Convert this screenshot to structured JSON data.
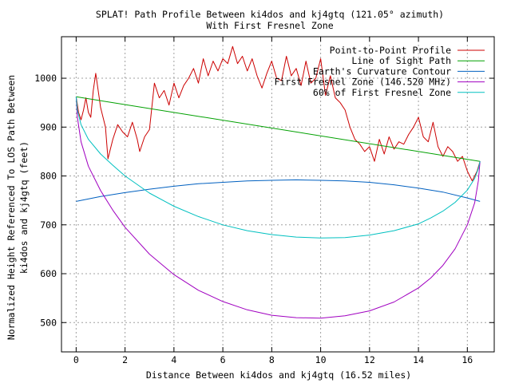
{
  "chart_data": {
    "type": "line",
    "title": "SPLAT! Path Profile Between ki4dos and kj4gtq (121.05° azimuth)",
    "subtitle": "With First Fresnel Zone",
    "xlabel": "Distance Between ki4dos and kj4gtq (16.52 miles)",
    "ylabel_line1": "Normalized Height Referenced To LOS Path Between",
    "ylabel_line2": "ki4dos and kj4gtq (feet)",
    "xlim": [
      -0.6,
      17.1
    ],
    "ylim": [
      440,
      1085
    ],
    "xticks": [
      0,
      2,
      4,
      6,
      8,
      10,
      12,
      14,
      16
    ],
    "yticks": [
      500,
      600,
      700,
      800,
      900,
      1000
    ],
    "grid": true,
    "legend_position": "top-right",
    "series": [
      {
        "name": "Point-to-Point Profile",
        "color": "#cc0000",
        "x": [
          0,
          0.1,
          0.2,
          0.3,
          0.4,
          0.5,
          0.6,
          0.7,
          0.8,
          1.0,
          1.2,
          1.3,
          1.5,
          1.7,
          1.9,
          2.1,
          2.3,
          2.5,
          2.6,
          2.8,
          3.0,
          3.2,
          3.4,
          3.6,
          3.8,
          4.0,
          4.2,
          4.4,
          4.6,
          4.8,
          5.0,
          5.2,
          5.4,
          5.6,
          5.8,
          6.0,
          6.2,
          6.4,
          6.6,
          6.8,
          7.0,
          7.2,
          7.4,
          7.6,
          7.8,
          8.0,
          8.2,
          8.4,
          8.6,
          8.8,
          9.0,
          9.2,
          9.4,
          9.6,
          9.8,
          10.0,
          10.2,
          10.4,
          10.6,
          10.8,
          11.0,
          11.2,
          11.4,
          11.6,
          11.8,
          12.0,
          12.2,
          12.4,
          12.6,
          12.8,
          13.0,
          13.2,
          13.4,
          13.6,
          13.8,
          14.0,
          14.2,
          14.4,
          14.6,
          14.8,
          15.0,
          15.2,
          15.4,
          15.6,
          15.8,
          16.0,
          16.2,
          16.4,
          16.52
        ],
        "values": [
          962,
          930,
          915,
          935,
          960,
          930,
          920,
          975,
          1010,
          940,
          900,
          835,
          875,
          905,
          890,
          880,
          910,
          875,
          850,
          880,
          895,
          990,
          960,
          975,
          945,
          990,
          960,
          985,
          1000,
          1020,
          990,
          1040,
          1005,
          1035,
          1015,
          1040,
          1030,
          1065,
          1030,
          1045,
          1015,
          1040,
          1005,
          980,
          1010,
          1035,
          1000,
          995,
          1045,
          1005,
          1020,
          985,
          1035,
          990,
          1000,
          1040,
          965,
          1005,
          960,
          950,
          935,
          900,
          875,
          865,
          850,
          860,
          830,
          875,
          845,
          880,
          855,
          870,
          865,
          885,
          900,
          920,
          880,
          870,
          910,
          860,
          840,
          860,
          850,
          830,
          840,
          810,
          790,
          810,
          830
        ]
      },
      {
        "name": "Line of Sight Path",
        "color": "#00a000",
        "x": [
          0,
          16.52
        ],
        "values": [
          962,
          830
        ]
      },
      {
        "name": "Earth's Curvature Contour",
        "color": "#0060c0",
        "x": [
          0,
          1,
          2,
          3,
          4,
          5,
          6,
          7,
          8,
          9,
          10,
          11,
          12,
          13,
          14,
          15,
          16,
          16.52
        ],
        "values": [
          748,
          758,
          766,
          773,
          779,
          784,
          787,
          790,
          791,
          792,
          791,
          790,
          787,
          782,
          775,
          767,
          755,
          748
        ]
      },
      {
        "name": "First Fresnel Zone (146.520 MHz)",
        "color": "#a000c0",
        "x": [
          0,
          0.05,
          0.2,
          0.5,
          1,
          1.5,
          2,
          3,
          4,
          5,
          6,
          7,
          8,
          9,
          10,
          11,
          12,
          13,
          14,
          14.5,
          15,
          15.5,
          16,
          16.3,
          16.45,
          16.52
        ],
        "values": [
          962,
          920,
          870,
          820,
          770,
          730,
          695,
          640,
          598,
          566,
          543,
          526,
          515,
          510,
          509,
          514,
          524,
          542,
          571,
          591,
          617,
          651,
          700,
          745,
          790,
          830
        ]
      },
      {
        "name": "60% of First Fresnel Zone",
        "color": "#00c0c0",
        "x": [
          0,
          0.05,
          0.2,
          0.5,
          1,
          1.5,
          2,
          3,
          4,
          5,
          6,
          7,
          8,
          9,
          10,
          11,
          12,
          13,
          14,
          14.5,
          15,
          15.5,
          16,
          16.3,
          16.45,
          16.52
        ],
        "values": [
          962,
          935,
          905,
          875,
          845,
          822,
          800,
          765,
          738,
          717,
          700,
          688,
          680,
          675,
          673,
          674,
          679,
          688,
          702,
          714,
          728,
          746,
          771,
          795,
          815,
          830
        ]
      }
    ]
  }
}
